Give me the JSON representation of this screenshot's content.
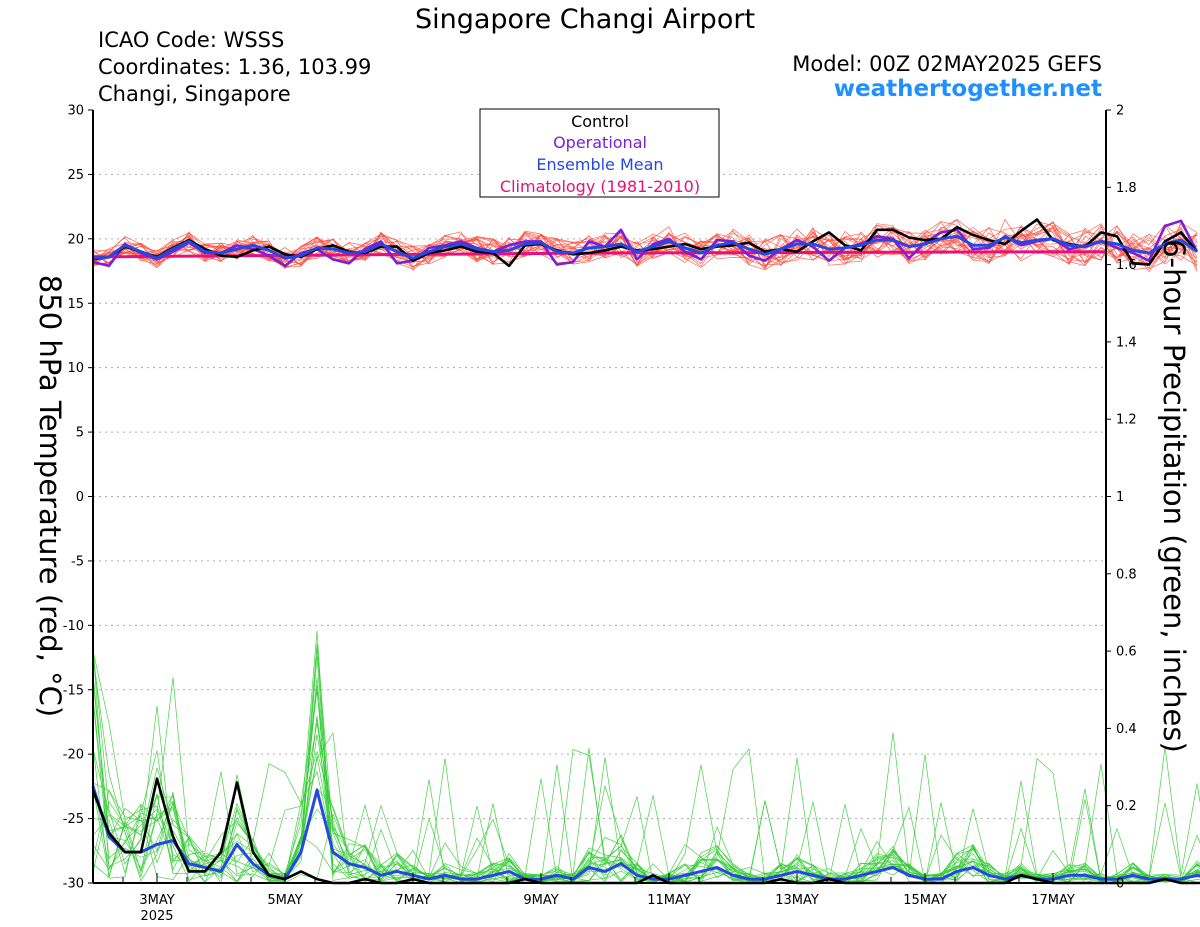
{
  "header": {
    "title": "Singapore Changi Airport",
    "icao": "ICAO Code: WSSS",
    "coordinates": "Coordinates: 1.36, 103.99",
    "place": "Changi, Singapore",
    "model": "Model: 00Z 02MAY2025 GEFS",
    "site": "weathertogether.net"
  },
  "colors": {
    "control": "#000000",
    "operational": "#7b1fd8",
    "ensemble_mean": "#2448e0",
    "climatology": "#e8107a",
    "temp_members": "#ff4a3a",
    "precip_members": "#33cc33"
  },
  "chart_data": {
    "type": "line",
    "title": "Singapore Changi Airport",
    "x_tick_labels": [
      "3MAY",
      "5MAY",
      "7MAY",
      "9MAY",
      "11MAY",
      "13MAY",
      "15MAY",
      "17MAY"
    ],
    "x_year_label": "2025",
    "x_start": "2025-05-02 06Z",
    "x_step_hours": 6,
    "y_left": {
      "label": "850 hPa Temperature (red, °C)",
      "range": [
        -30,
        30
      ],
      "ticks": [
        "30",
        "25",
        "20",
        "15",
        "10",
        "5",
        "0",
        "-5",
        "-10",
        "-15",
        "-20",
        "-25",
        "-30"
      ]
    },
    "y_right": {
      "label": "6-hour Precipitation (green, inches)",
      "range": [
        0,
        2
      ],
      "ticks": [
        "2",
        "1.8",
        "1.6",
        "1.4",
        "1.2",
        "1",
        "0.8",
        "0.6",
        "0.4",
        "0.2",
        "0"
      ]
    },
    "grid": true,
    "legend": {
      "position": "top-center",
      "entries": [
        "Control",
        "Operational",
        "Ensemble Mean",
        "Climatology (1981-2010)"
      ]
    },
    "temperature": {
      "control": [
        18.4,
        18.6,
        19.4,
        19.0,
        18.6,
        19.3,
        19.9,
        19.2,
        18.7,
        18.6,
        19.1,
        19.4,
        18.8,
        18.6,
        19.2,
        19.5,
        19.0,
        18.9,
        19.4,
        19.4,
        18.3,
        18.9,
        19.1,
        19.4,
        19.0,
        18.9,
        17.9,
        19.5,
        19.6,
        19.1,
        18.8,
        18.9,
        19.1,
        19.4,
        19.1,
        19.2,
        19.4,
        19.6,
        19.2,
        19.4,
        19.5,
        19.7,
        19.0,
        19.2,
        19.0,
        19.8,
        20.5,
        19.5,
        19.1,
        20.7,
        20.7,
        20.1,
        19.9,
        20.0,
        20.9,
        20.3,
        19.9,
        19.6,
        20.6,
        21.5,
        19.9,
        19.6,
        19.4,
        20.5,
        20.2,
        18.1,
        18.0,
        19.8,
        20.5,
        19.0
      ],
      "operational": [
        18.2,
        17.9,
        19.6,
        18.9,
        18.4,
        19.0,
        19.7,
        18.9,
        18.9,
        19.5,
        19.2,
        18.7,
        17.9,
        18.9,
        19.2,
        18.4,
        18.1,
        19.2,
        19.8,
        18.1,
        18.3,
        19.3,
        19.5,
        19.8,
        19.3,
        19.0,
        19.5,
        19.8,
        19.8,
        18.0,
        18.2,
        19.8,
        19.4,
        20.7,
        18.4,
        19.6,
        20.0,
        19.0,
        18.4,
        19.9,
        19.8,
        18.7,
        18.3,
        19.2,
        19.9,
        19.4,
        18.3,
        19.3,
        19.6,
        20.2,
        20.0,
        18.5,
        19.7,
        20.5,
        20.7,
        19.2,
        19.3,
        20.2,
        19.5,
        19.8,
        20.0,
        19.2,
        19.5,
        19.8,
        19.3,
        18.9,
        18.3,
        21.0,
        21.4,
        19.0
      ],
      "ensemble_mean": [
        18.5,
        18.6,
        19.5,
        19.0,
        18.5,
        19.2,
        19.8,
        19.0,
        18.9,
        19.2,
        19.5,
        19.1,
        18.5,
        18.7,
        19.3,
        19.2,
        18.9,
        19.0,
        19.6,
        19.0,
        18.5,
        19.0,
        19.4,
        19.6,
        19.2,
        19.0,
        19.1,
        19.6,
        19.7,
        19.0,
        18.9,
        19.3,
        19.4,
        19.6,
        19.0,
        19.4,
        19.8,
        19.3,
        18.9,
        19.5,
        19.7,
        19.2,
        18.8,
        19.2,
        19.6,
        19.6,
        19.2,
        19.3,
        19.5,
        19.9,
        19.9,
        19.4,
        19.6,
        20.0,
        20.2,
        19.5,
        19.5,
        20.1,
        19.7,
        19.9,
        20.0,
        19.5,
        19.4,
        19.8,
        19.6,
        19.1,
        18.9,
        19.6,
        19.9,
        19.0
      ],
      "climatology": [
        18.6,
        18.9,
        19.0
      ]
    },
    "precipitation": {
      "control": [
        0.24,
        0.13,
        0.08,
        0.08,
        0.27,
        0.12,
        0.03,
        0.03,
        0.08,
        0.26,
        0.08,
        0.02,
        0.01,
        0.03,
        0.01,
        0.0,
        0.0,
        0.01,
        0.0,
        0.0,
        0.01,
        0.0,
        0.0,
        0.0,
        0.0,
        0.0,
        0.0,
        0.01,
        0.0,
        0.0,
        0.0,
        0.0,
        0.0,
        0.0,
        0.0,
        0.02,
        0.0,
        0.0,
        0.0,
        0.0,
        0.0,
        0.0,
        0.0,
        0.01,
        0.0,
        0.0,
        0.01,
        0.0,
        0.0,
        0.0,
        0.0,
        0.0,
        0.0,
        0.0,
        0.0,
        0.0,
        0.0,
        0.0,
        0.02,
        0.01,
        0.0,
        0.0,
        0.0,
        0.0,
        0.0,
        0.0,
        0.0,
        0.01,
        0.0,
        0.0,
        0.0
      ],
      "ensemble_mean": [
        0.25,
        0.12,
        0.08,
        0.08,
        0.1,
        0.11,
        0.05,
        0.04,
        0.03,
        0.1,
        0.05,
        0.02,
        0.01,
        0.08,
        0.24,
        0.08,
        0.05,
        0.04,
        0.02,
        0.03,
        0.02,
        0.01,
        0.02,
        0.01,
        0.01,
        0.02,
        0.03,
        0.01,
        0.01,
        0.02,
        0.01,
        0.04,
        0.03,
        0.05,
        0.02,
        0.01,
        0.01,
        0.02,
        0.03,
        0.04,
        0.02,
        0.01,
        0.01,
        0.02,
        0.03,
        0.02,
        0.01,
        0.01,
        0.02,
        0.03,
        0.04,
        0.02,
        0.01,
        0.01,
        0.03,
        0.04,
        0.02,
        0.01,
        0.02,
        0.01,
        0.01,
        0.02,
        0.02,
        0.01,
        0.01,
        0.02,
        0.01,
        0.01,
        0.01,
        0.02,
        0.01
      ]
    }
  }
}
